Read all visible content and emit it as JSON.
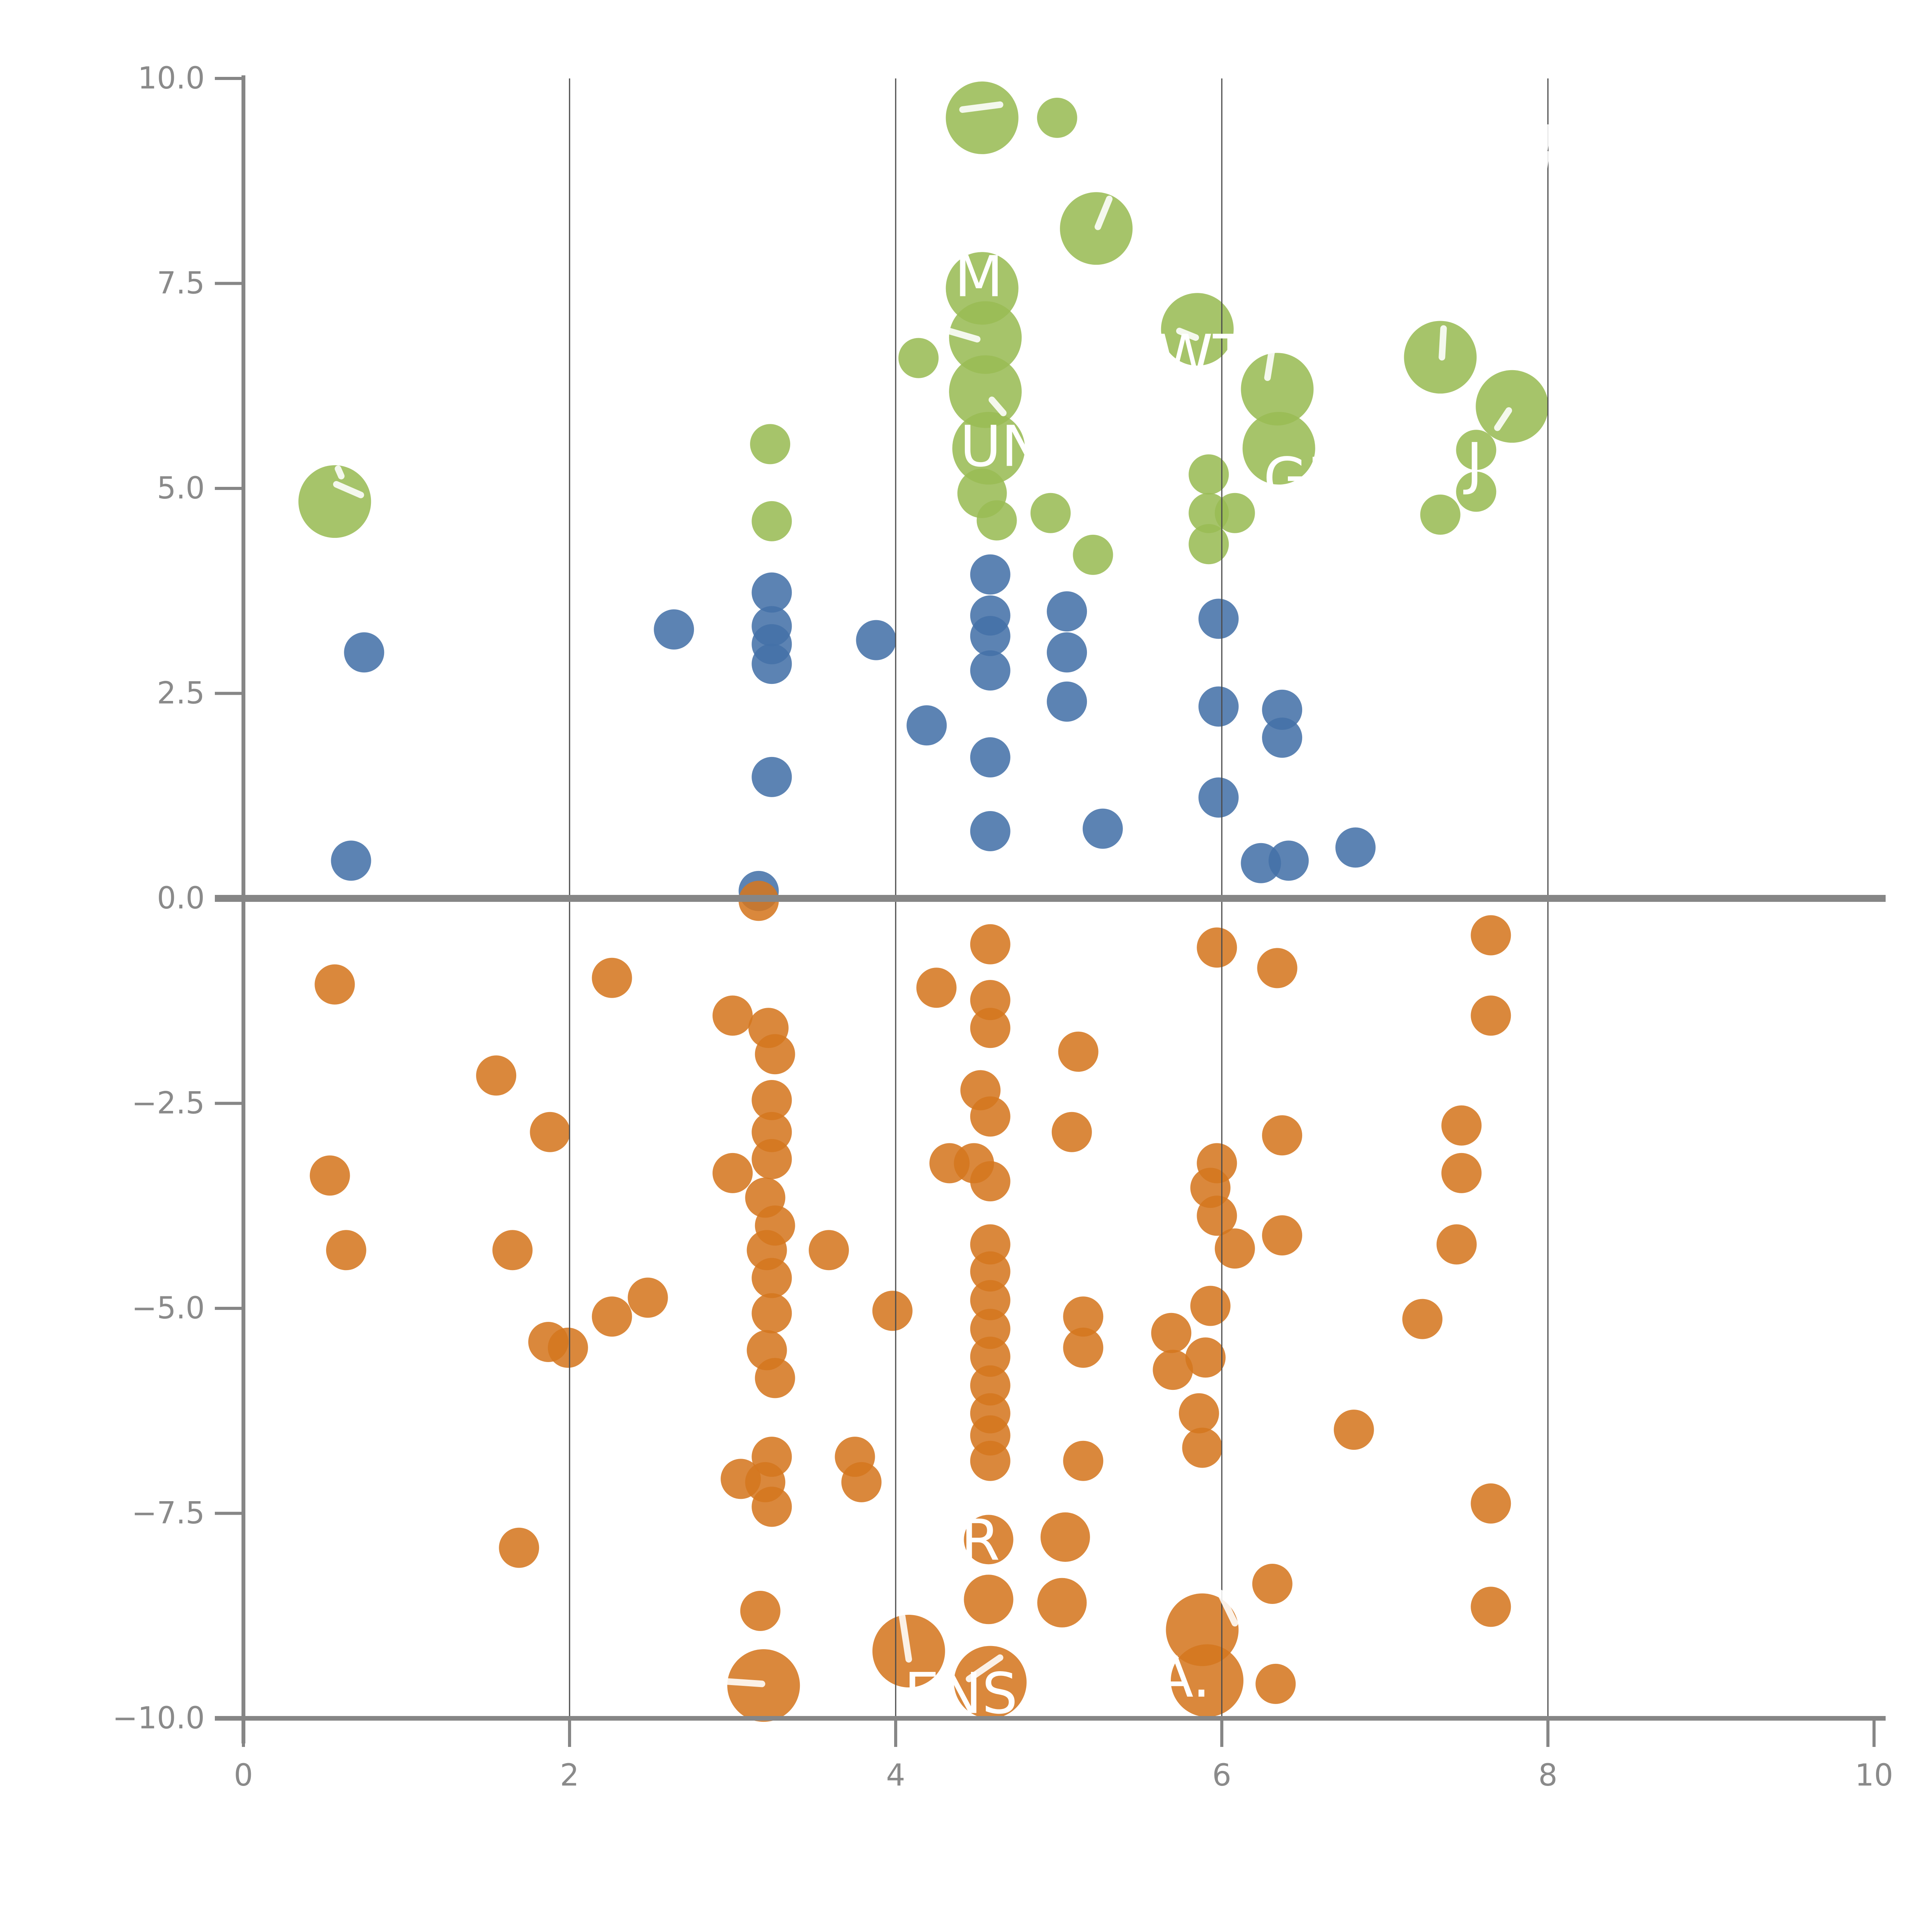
{
  "chart_data": {
    "type": "scatter",
    "title": "",
    "xlabel": "",
    "ylabel": "",
    "xlim": [
      0,
      10
    ],
    "ylim": [
      -10,
      10
    ],
    "x_ticks": [
      0,
      2,
      4,
      6,
      8,
      10
    ],
    "x_tick_labels": [
      "0",
      "2",
      "4",
      "6",
      "8",
      "10"
    ],
    "y_ticks": [
      10,
      7.5,
      5,
      2.5,
      0,
      -2.5,
      -5,
      -7.5,
      -10
    ],
    "y_tick_labels": [
      "10.0",
      "7.5",
      "5.0",
      "2.5",
      "0.0",
      "−2.5",
      "−5.0",
      "−7.5",
      "−10.0"
    ],
    "gridlines_x": [
      2,
      4,
      6,
      8
    ],
    "zero_line_y": 0,
    "grid_on": true,
    "legend": "none",
    "colors": {
      "green": "#99bb54",
      "blue": "#4470a8",
      "orange": "#d4761f",
      "axis": "#868686",
      "tick_label": "#8a8a8a",
      "gridline": "#4a4a4a",
      "annotation": "#ffffff"
    },
    "bubble_opacity": 0.87,
    "size_radius_px": {
      "s": 52,
      "m": 64,
      "l": 94
    },
    "series": [
      {
        "name": "green",
        "color_key": "green",
        "points": [
          [
            0.56,
            4.84,
            "l"
          ],
          [
            4.53,
            9.52,
            "l"
          ],
          [
            4.99,
            9.52,
            "s"
          ],
          [
            5.23,
            8.17,
            "l"
          ],
          [
            4.53,
            7.44,
            "l"
          ],
          [
            4.55,
            6.84,
            "l"
          ],
          [
            4.55,
            6.18,
            "l"
          ],
          [
            4.57,
            5.49,
            "l"
          ],
          [
            4.53,
            4.94,
            "m"
          ],
          [
            4.62,
            4.61,
            "s"
          ],
          [
            4.14,
            6.59,
            "s"
          ],
          [
            3.23,
            5.54,
            "s"
          ],
          [
            3.24,
            4.6,
            "s"
          ],
          [
            5.85,
            6.94,
            "l"
          ],
          [
            6.34,
            6.21,
            "l"
          ],
          [
            6.35,
            5.49,
            "l"
          ],
          [
            5.92,
            5.17,
            "s"
          ],
          [
            5.92,
            4.7,
            "s"
          ],
          [
            5.92,
            4.32,
            "s"
          ],
          [
            6.08,
            4.7,
            "s"
          ],
          [
            4.95,
            4.7,
            "s"
          ],
          [
            5.21,
            4.19,
            "s"
          ],
          [
            7.34,
            6.6,
            "l"
          ],
          [
            7.78,
            6.0,
            "l"
          ],
          [
            7.56,
            5.47,
            "s"
          ],
          [
            7.56,
            4.96,
            "s"
          ],
          [
            7.34,
            4.68,
            "s"
          ]
        ]
      },
      {
        "name": "blue",
        "color_key": "blue",
        "points": [
          [
            0.74,
            3.0,
            "s"
          ],
          [
            0.66,
            0.46,
            "s"
          ],
          [
            2.64,
            3.28,
            "s"
          ],
          [
            3.24,
            3.73,
            "s"
          ],
          [
            3.24,
            3.32,
            "s"
          ],
          [
            3.24,
            3.1,
            "s"
          ],
          [
            3.24,
            2.86,
            "s"
          ],
          [
            3.88,
            3.15,
            "s"
          ],
          [
            4.19,
            2.11,
            "s"
          ],
          [
            3.24,
            1.48,
            "s"
          ],
          [
            3.16,
            0.09,
            "s"
          ],
          [
            4.58,
            3.95,
            "s"
          ],
          [
            4.58,
            3.45,
            "s"
          ],
          [
            4.58,
            3.2,
            "s"
          ],
          [
            4.58,
            2.78,
            "s"
          ],
          [
            4.58,
            1.72,
            "s"
          ],
          [
            4.58,
            0.82,
            "s"
          ],
          [
            5.05,
            3.5,
            "s"
          ],
          [
            5.05,
            3.0,
            "s"
          ],
          [
            5.05,
            2.4,
            "s"
          ],
          [
            5.27,
            0.85,
            "s"
          ],
          [
            5.98,
            3.41,
            "s"
          ],
          [
            5.98,
            2.34,
            "s"
          ],
          [
            5.98,
            1.23,
            "s"
          ],
          [
            6.37,
            2.3,
            "s"
          ],
          [
            6.37,
            1.96,
            "s"
          ],
          [
            6.24,
            0.43,
            "s"
          ],
          [
            6.41,
            0.46,
            "s"
          ],
          [
            6.82,
            0.62,
            "s"
          ]
        ]
      },
      {
        "name": "orange",
        "color_key": "orange",
        "points": [
          [
            3.16,
            -0.03,
            "s"
          ],
          [
            0.56,
            -1.05,
            "s"
          ],
          [
            0.53,
            -3.38,
            "s"
          ],
          [
            0.63,
            -4.29,
            "s"
          ],
          [
            1.55,
            -2.16,
            "s"
          ],
          [
            1.65,
            -4.29,
            "s"
          ],
          [
            1.69,
            -7.92,
            "s"
          ],
          [
            1.88,
            -2.85,
            "s"
          ],
          [
            1.87,
            -5.41,
            "s"
          ],
          [
            1.99,
            -5.48,
            "s"
          ],
          [
            2.26,
            -0.97,
            "s"
          ],
          [
            2.26,
            -5.1,
            "s"
          ],
          [
            2.48,
            -4.87,
            "s"
          ],
          [
            3.0,
            -1.43,
            "s"
          ],
          [
            3.0,
            -3.35,
            "s"
          ],
          [
            3.05,
            -7.08,
            "s"
          ],
          [
            3.22,
            -1.58,
            "s"
          ],
          [
            3.26,
            -1.9,
            "s"
          ],
          [
            3.24,
            -2.46,
            "s"
          ],
          [
            3.24,
            -2.85,
            "s"
          ],
          [
            3.24,
            -3.18,
            "s"
          ],
          [
            3.2,
            -3.65,
            "s"
          ],
          [
            3.26,
            -3.99,
            "s"
          ],
          [
            3.21,
            -4.29,
            "s"
          ],
          [
            3.24,
            -4.63,
            "s"
          ],
          [
            3.24,
            -5.06,
            "s"
          ],
          [
            3.21,
            -5.51,
            "s"
          ],
          [
            3.26,
            -5.85,
            "s"
          ],
          [
            3.24,
            -6.81,
            "s"
          ],
          [
            3.2,
            -7.12,
            "s"
          ],
          [
            3.24,
            -7.42,
            "s"
          ],
          [
            3.17,
            -8.69,
            "s"
          ],
          [
            3.19,
            -9.6,
            "l"
          ],
          [
            3.59,
            -4.29,
            "s"
          ],
          [
            3.75,
            -6.81,
            "s"
          ],
          [
            3.79,
            -7.12,
            "s"
          ],
          [
            3.98,
            -5.03,
            "s"
          ],
          [
            4.25,
            -1.09,
            "s"
          ],
          [
            4.33,
            -3.23,
            "s"
          ],
          [
            4.58,
            -0.56,
            "s"
          ],
          [
            4.58,
            -1.24,
            "s"
          ],
          [
            4.58,
            -1.58,
            "s"
          ],
          [
            4.52,
            -2.34,
            "s"
          ],
          [
            4.58,
            -2.66,
            "s"
          ],
          [
            4.48,
            -3.23,
            "s"
          ],
          [
            4.58,
            -3.45,
            "s"
          ],
          [
            4.58,
            -4.22,
            "s"
          ],
          [
            4.58,
            -4.55,
            "s"
          ],
          [
            4.58,
            -4.9,
            "s"
          ],
          [
            4.58,
            -5.25,
            "s"
          ],
          [
            4.58,
            -5.59,
            "s"
          ],
          [
            4.58,
            -5.94,
            "s"
          ],
          [
            4.58,
            -6.28,
            "s"
          ],
          [
            4.58,
            -6.55,
            "s"
          ],
          [
            4.58,
            -6.86,
            "s"
          ],
          [
            4.57,
            -7.82,
            "m"
          ],
          [
            5.04,
            -7.79,
            "m"
          ],
          [
            4.57,
            -8.55,
            "m"
          ],
          [
            5.02,
            -8.59,
            "m"
          ],
          [
            4.08,
            -9.18,
            "l"
          ],
          [
            4.58,
            -9.56,
            "l"
          ],
          [
            5.12,
            -1.87,
            "s"
          ],
          [
            5.08,
            -2.85,
            "s"
          ],
          [
            5.15,
            -5.1,
            "s"
          ],
          [
            5.15,
            -5.48,
            "s"
          ],
          [
            5.15,
            -6.86,
            "s"
          ],
          [
            5.97,
            -0.6,
            "s"
          ],
          [
            5.97,
            -3.23,
            "s"
          ],
          [
            5.93,
            -3.53,
            "s"
          ],
          [
            5.97,
            -3.87,
            "s"
          ],
          [
            6.08,
            -4.27,
            "s"
          ],
          [
            5.93,
            -4.97,
            "s"
          ],
          [
            5.69,
            -5.3,
            "s"
          ],
          [
            5.9,
            -5.6,
            "s"
          ],
          [
            5.7,
            -5.75,
            "s"
          ],
          [
            5.86,
            -6.28,
            "s"
          ],
          [
            5.88,
            -6.7,
            "s"
          ],
          [
            5.88,
            -8.92,
            "l"
          ],
          [
            5.91,
            -9.54,
            "l"
          ],
          [
            6.31,
            -8.36,
            "s"
          ],
          [
            6.33,
            -9.58,
            "s"
          ],
          [
            6.34,
            -0.85,
            "s"
          ],
          [
            6.37,
            -2.89,
            "s"
          ],
          [
            6.37,
            -4.11,
            "s"
          ],
          [
            6.81,
            -6.48,
            "s"
          ],
          [
            7.23,
            -5.13,
            "s"
          ],
          [
            7.47,
            -2.77,
            "s"
          ],
          [
            7.47,
            -3.35,
            "s"
          ],
          [
            7.44,
            -4.22,
            "s"
          ],
          [
            7.65,
            -0.45,
            "s"
          ],
          [
            7.65,
            -1.43,
            "s"
          ],
          [
            7.65,
            -7.38,
            "s"
          ],
          [
            7.65,
            -8.64,
            "s"
          ]
        ]
      }
    ],
    "annotations": [
      {
        "text": "M",
        "x": 4.51,
        "y": 7.58
      },
      {
        "text": "UN",
        "x": 4.65,
        "y": 5.51
      },
      {
        "text": "WT",
        "x": 5.88,
        "y": 6.62
      },
      {
        "text": "GI",
        "x": 6.44,
        "y": 5.12
      },
      {
        "text": "J",
        "x": 7.55,
        "y": 5.3
      },
      {
        "text": "R",
        "x": 4.52,
        "y": -7.83
      },
      {
        "text": "ENS",
        "x": 4.4,
        "y": -9.7
      },
      {
        "text": "A.",
        "x": 5.76,
        "y": -9.5
      }
    ],
    "fragments": [
      [
        0.57,
        5.05,
        0.72,
        4.92
      ],
      [
        0.58,
        5.24,
        0.6,
        5.15
      ],
      [
        4.41,
        9.62,
        4.64,
        9.68
      ],
      [
        5.31,
        8.53,
        5.24,
        8.19
      ],
      [
        4.31,
        6.93,
        4.5,
        6.82
      ],
      [
        4.59,
        6.08,
        4.66,
        5.92
      ],
      [
        5.74,
        6.92,
        5.84,
        6.84
      ],
      [
        6.31,
        6.72,
        6.28,
        6.35
      ],
      [
        7.36,
        6.95,
        7.35,
        6.6
      ],
      [
        7.76,
        5.95,
        7.69,
        5.74
      ],
      [
        4.04,
        -8.76,
        4.08,
        -9.28
      ],
      [
        2.96,
        -9.55,
        3.18,
        -9.58
      ],
      [
        5.99,
        -8.47,
        6.08,
        -8.84
      ],
      [
        4.45,
        -9.52,
        4.64,
        -9.26
      ],
      [
        8.0,
        9.4,
        7.98,
        9.14
      ],
      [
        7.99,
        9.08,
        7.97,
        8.82
      ]
    ]
  }
}
